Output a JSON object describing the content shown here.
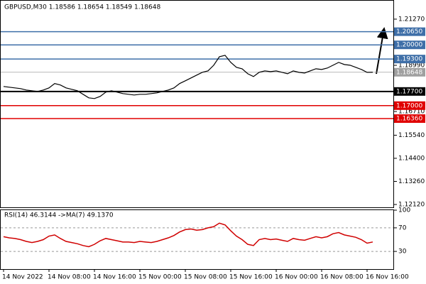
{
  "chart_data": [
    {
      "type": "line",
      "title": "GBPUSD,M30  1.18586 1.18654 1.18549 1.18648",
      "categories": [
        "14 Nov 2022",
        null,
        null,
        null,
        null,
        null,
        null,
        null,
        "14 Nov 08:00",
        null,
        null,
        null,
        null,
        null,
        null,
        null,
        "14 Nov 16:00",
        null,
        null,
        null,
        null,
        null,
        null,
        null,
        "15 Nov 00:00",
        null,
        null,
        null,
        null,
        null,
        null,
        null,
        "15 Nov 08:00",
        null,
        null,
        null,
        null,
        null,
        null,
        null,
        "15 Nov 16:00",
        null,
        null,
        null,
        null,
        null,
        null,
        null,
        "16 Nov 00:00",
        null,
        null,
        null,
        null,
        null,
        null,
        null,
        "16 Nov 08:00",
        null,
        null,
        null,
        null,
        null,
        null,
        null,
        "16 Nov 16:00",
        null
      ],
      "series": [
        {
          "name": "GBPUSD",
          "color": "#000000",
          "values": [
            1.17945,
            1.1791,
            1.17875,
            1.1784,
            1.1777,
            1.17735,
            1.177,
            1.1777,
            1.17875,
            1.1809,
            1.1802,
            1.17875,
            1.17805,
            1.17735,
            1.1756,
            1.17385,
            1.1735,
            1.17455,
            1.17665,
            1.17735,
            1.17665,
            1.17595,
            1.1756,
            1.17525,
            1.1756,
            1.1756,
            1.17595,
            1.1763,
            1.177,
            1.1777,
            1.17875,
            1.1809,
            1.18225,
            1.18365,
            1.18505,
            1.18645,
            1.18715,
            1.18995,
            1.19415,
            1.19485,
            1.19135,
            1.1889,
            1.1882,
            1.18575,
            1.18435,
            1.18645,
            1.18715,
            1.1868,
            1.18715,
            1.18645,
            1.18575,
            1.18715,
            1.18645,
            1.1861,
            1.18715,
            1.1882,
            1.18785,
            1.18855,
            1.18995,
            1.19135,
            1.1903,
            1.18995,
            1.1889,
            1.18785,
            1.18645,
            1.18648
          ]
        }
      ],
      "ylim": [
        1.1198,
        1.2211
      ],
      "yticks": [
        {
          "value": 1.2127,
          "label": "1.21270"
        },
        {
          "value": 1.1899,
          "label": "1.18990"
        },
        {
          "value": 1.1671,
          "label": "1.16710"
        },
        {
          "value": 1.1554,
          "label": "1.15540"
        },
        {
          "value": 1.144,
          "label": "1.14400"
        },
        {
          "value": 1.1326,
          "label": "1.13260"
        },
        {
          "value": 1.1212,
          "label": "1.12120"
        }
      ],
      "levels": [
        {
          "value": 1.2065,
          "label": "1.20650",
          "color": "#3f6fa8"
        },
        {
          "value": 1.2,
          "label": "1.20000",
          "color": "#3f6fa8"
        },
        {
          "value": 1.193,
          "label": "1.19300",
          "color": "#3f6fa8"
        },
        {
          "value": 1.18648,
          "label": "1.18648",
          "color": "#a0a0a0"
        },
        {
          "value": 1.177,
          "label": "1.17700",
          "color": "#000000"
        },
        {
          "value": 1.17,
          "label": "1.17000",
          "color": "#e00000"
        },
        {
          "value": 1.1636,
          "label": "1.16360",
          "color": "#e00000"
        }
      ]
    },
    {
      "type": "line",
      "title": "RSI(14) 46.3144 ->MA(7) 49.1370",
      "series": [
        {
          "name": "RSI(14)",
          "color": "#d00000",
          "values": [
            55,
            53,
            52,
            50,
            47,
            45,
            47,
            50,
            56,
            58,
            52,
            47,
            45,
            43,
            40,
            38,
            42,
            48,
            52,
            50,
            48,
            46,
            46,
            45,
            47,
            46,
            45,
            47,
            50,
            53,
            57,
            63,
            67,
            68,
            66,
            67,
            70,
            72,
            78,
            75,
            65,
            56,
            50,
            42,
            40,
            50,
            52,
            50,
            51,
            49,
            47,
            52,
            50,
            49,
            52,
            55,
            53,
            55,
            60,
            62,
            58,
            56,
            54,
            50,
            44,
            46
          ]
        }
      ],
      "ylim": [
        0,
        100
      ],
      "yticks": [
        100,
        70,
        30
      ]
    }
  ]
}
